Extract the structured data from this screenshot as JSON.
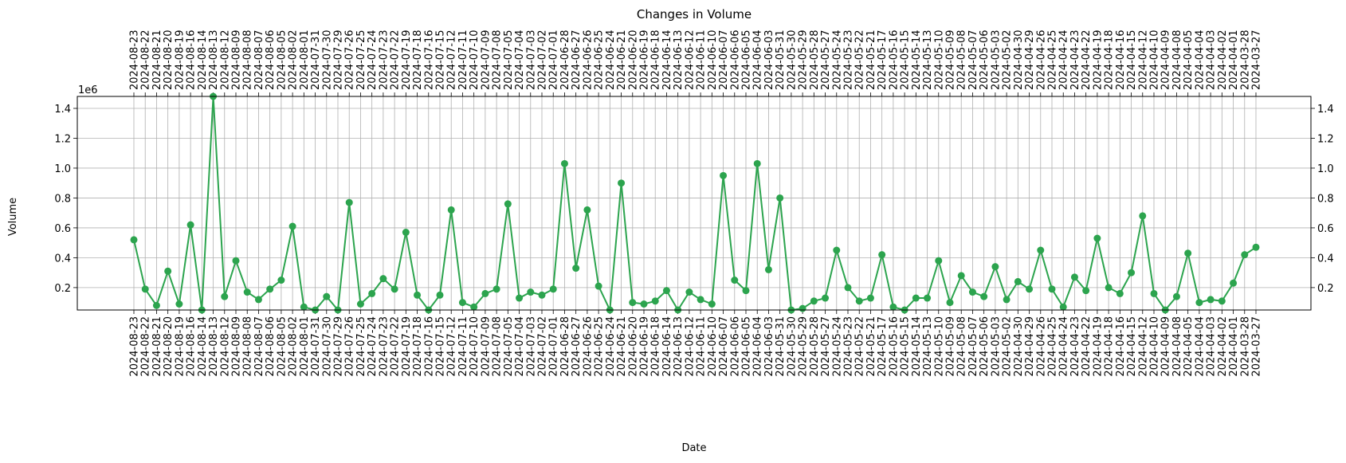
{
  "chart_data": {
    "type": "line",
    "title": "Changes in Volume",
    "xlabel": "Date",
    "ylabel": "Volume",
    "y_offset_label": "1e6",
    "ylim": [
      0.05,
      1.48
    ],
    "yticks": [
      0.2,
      0.4,
      0.6,
      0.8,
      1.0,
      1.2,
      1.4
    ],
    "ytick_labels": [
      "0.2",
      "0.4",
      "0.6",
      "0.8",
      "1.0",
      "1.2",
      "1.4"
    ],
    "grid": true,
    "line_color": "#2ca44e",
    "marker": "circle",
    "categories": [
      "2024-08-23",
      "2024-08-22",
      "2024-08-21",
      "2024-08-20",
      "2024-08-19",
      "2024-08-16",
      "2024-08-14",
      "2024-08-13",
      "2024-08-12",
      "2024-08-09",
      "2024-08-08",
      "2024-08-07",
      "2024-08-06",
      "2024-08-05",
      "2024-08-02",
      "2024-08-01",
      "2024-07-31",
      "2024-07-30",
      "2024-07-29",
      "2024-07-26",
      "2024-07-25",
      "2024-07-24",
      "2024-07-23",
      "2024-07-22",
      "2024-07-19",
      "2024-07-18",
      "2024-07-16",
      "2024-07-15",
      "2024-07-12",
      "2024-07-11",
      "2024-07-10",
      "2024-07-09",
      "2024-07-08",
      "2024-07-05",
      "2024-07-04",
      "2024-07-03",
      "2024-07-02",
      "2024-07-01",
      "2024-06-28",
      "2024-06-27",
      "2024-06-26",
      "2024-06-25",
      "2024-06-24",
      "2024-06-21",
      "2024-06-20",
      "2024-06-19",
      "2024-06-18",
      "2024-06-14",
      "2024-06-13",
      "2024-06-12",
      "2024-06-11",
      "2024-06-10",
      "2024-06-07",
      "2024-06-06",
      "2024-06-05",
      "2024-06-04",
      "2024-06-03",
      "2024-05-31",
      "2024-05-30",
      "2024-05-29",
      "2024-05-28",
      "2024-05-27",
      "2024-05-24",
      "2024-05-23",
      "2024-05-22",
      "2024-05-21",
      "2024-05-17",
      "2024-05-16",
      "2024-05-15",
      "2024-05-14",
      "2024-05-13",
      "2024-05-10",
      "2024-05-09",
      "2024-05-08",
      "2024-05-07",
      "2024-05-06",
      "2024-05-03",
      "2024-05-02",
      "2024-04-30",
      "2024-04-29",
      "2024-04-26",
      "2024-04-25",
      "2024-04-24",
      "2024-04-23",
      "2024-04-22",
      "2024-04-19",
      "2024-04-18",
      "2024-04-16",
      "2024-04-15",
      "2024-04-12",
      "2024-04-10",
      "2024-04-09",
      "2024-04-08",
      "2024-04-05",
      "2024-04-04",
      "2024-04-03",
      "2024-04-02",
      "2024-04-01",
      "2024-03-28",
      "2024-03-27"
    ],
    "series": [
      {
        "values": [
          0.52,
          0.19,
          0.08,
          0.31,
          0.09,
          0.62,
          0.05,
          1.48,
          0.14,
          0.38,
          0.17,
          0.12,
          0.19,
          0.25,
          0.61,
          0.07,
          0.05,
          0.14,
          0.05,
          0.77,
          0.09,
          0.16,
          0.26,
          0.19,
          0.57,
          0.15,
          0.05,
          0.15,
          0.72,
          0.1,
          0.07,
          0.16,
          0.19,
          0.76,
          0.13,
          0.17,
          0.15,
          0.19,
          1.03,
          0.33,
          0.72,
          0.21,
          0.05,
          0.9,
          0.1,
          0.09,
          0.11,
          0.18,
          0.04,
          0.17,
          0.12,
          0.09,
          0.95,
          0.25,
          0.18,
          1.03,
          0.32,
          0.8,
          0.05,
          0.06,
          0.11,
          0.13,
          0.45,
          0.2,
          0.11,
          0.13,
          0.42,
          0.07,
          0.04,
          0.13,
          0.13,
          0.38,
          0.1,
          0.28,
          0.17,
          0.14,
          0.34,
          0.12,
          0.24,
          0.19,
          0.45,
          0.19,
          0.07,
          0.27,
          0.18,
          0.53,
          0.2,
          0.16,
          0.3,
          0.68,
          0.16,
          0.05,
          0.14,
          0.43,
          0.1,
          0.12,
          0.11,
          0.23,
          0.42,
          0.47
        ]
      }
    ]
  }
}
